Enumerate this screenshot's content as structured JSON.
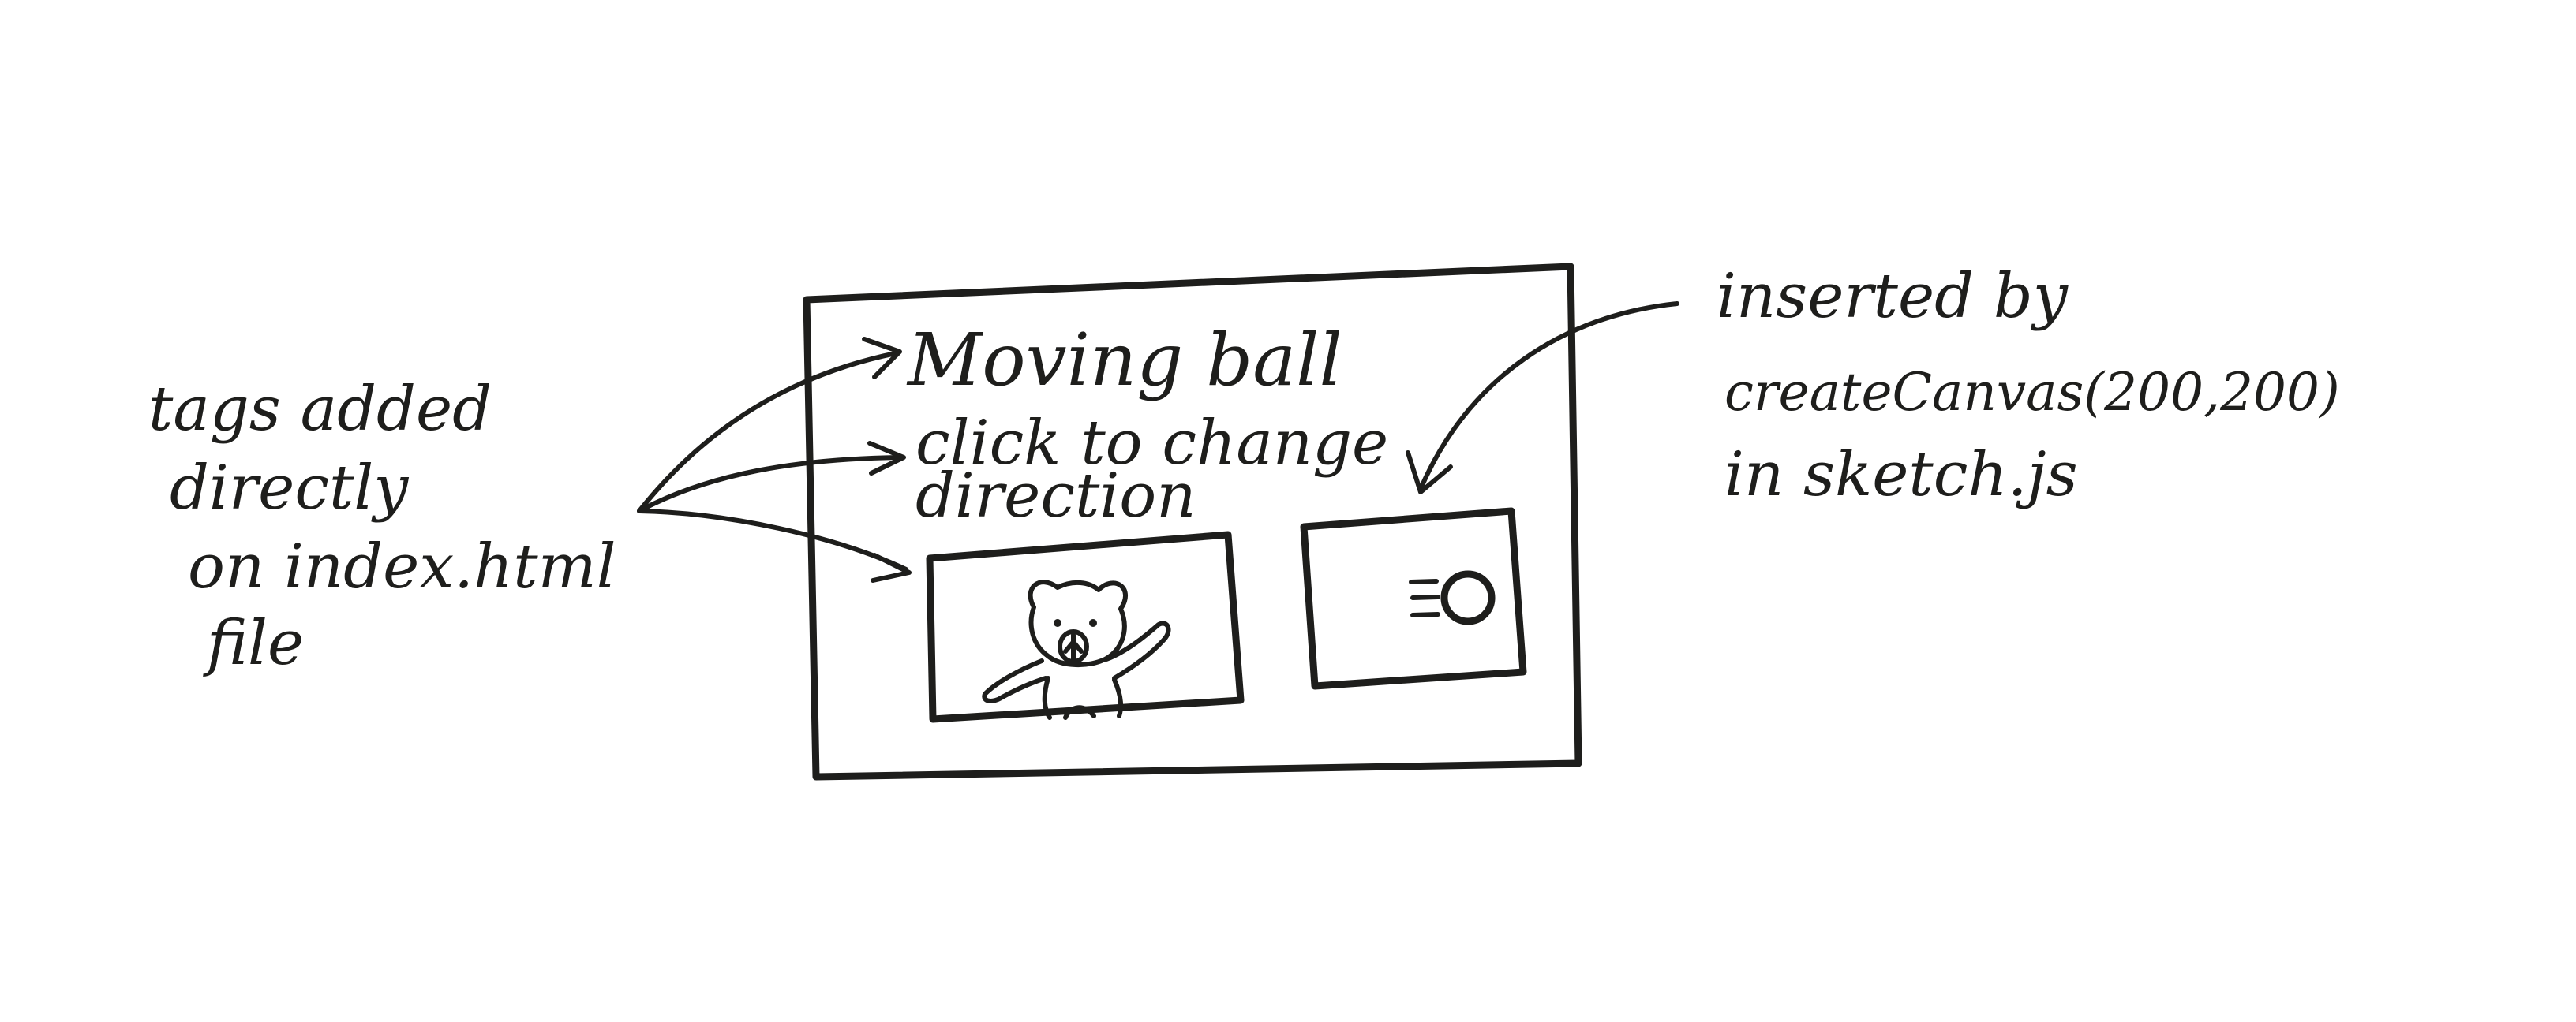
{
  "page": {
    "title_line": "Moving ball",
    "instruction_line1": "click to change",
    "instruction_line2": "direction"
  },
  "left_note": {
    "lines": [
      "tags added",
      "directly",
      "on index.html",
      "file"
    ]
  },
  "right_note": {
    "lines": [
      "inserted by",
      "createCanvas(200,200)",
      "in    sketch.js"
    ]
  },
  "icons": {
    "image_content": "teddy-bear",
    "canvas_content": "moving-ball"
  },
  "colors": {
    "ink": "#1e1e1c",
    "paper": "#ffffff"
  }
}
